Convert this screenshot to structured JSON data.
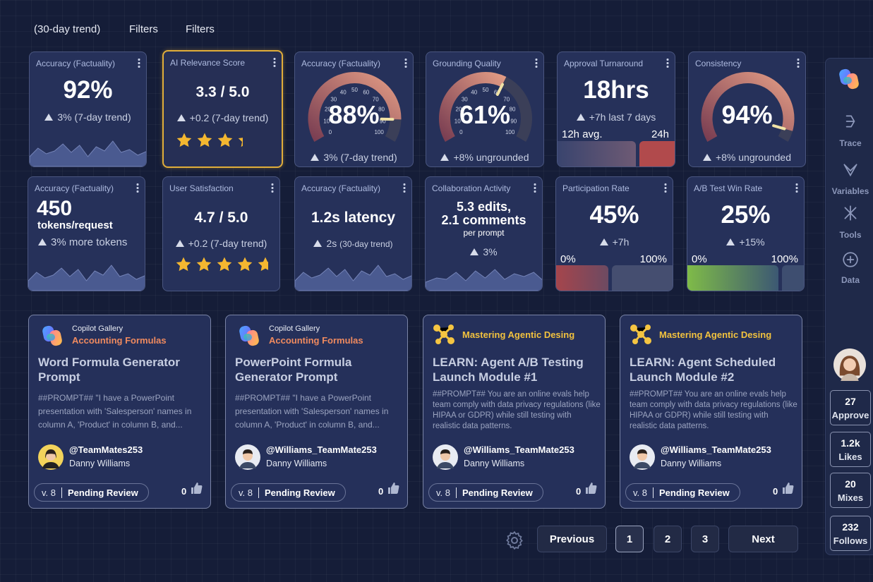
{
  "topbar": {
    "items": [
      "(30-day trend)",
      "Filters",
      "Filters"
    ]
  },
  "metrics": [
    {
      "title": "Accuracy (Factuality)",
      "value": "92%",
      "trend": "3% (7-day trend)"
    },
    {
      "title": "AI Relevance Score",
      "value": "3.3 / 5.0",
      "trend": "+0.2 (7-day trend)",
      "rating": 3.3
    },
    {
      "title": "Accuracy (Factuality)",
      "value": "88%",
      "gauge": 88,
      "trend": "3% (7-day trend)",
      "scale": [
        "0",
        "10",
        "20",
        "30",
        "40",
        "50",
        "60",
        "70",
        "80",
        "90",
        "100"
      ]
    },
    {
      "title": "Grounding Quality",
      "value": "61%",
      "gauge": 61,
      "trend": "+8% ungrounded",
      "scale": [
        "0",
        "10",
        "20",
        "30",
        "40",
        "50",
        "60",
        "70",
        "80",
        "90",
        "100"
      ]
    },
    {
      "title": "Approval Turnaround",
      "value": "18hrs",
      "trend": "+7h last 7 days",
      "bar_labels": [
        "12h avg.",
        "24h"
      ]
    },
    {
      "title": "Consistency",
      "value": "94%",
      "gauge": 94,
      "trend": "+8% ungrounded"
    },
    {
      "title": "Accuracy (Factuality)",
      "value": "450",
      "unit": "tokens/request",
      "trend": "3% more tokens"
    },
    {
      "title": "User Satisfaction",
      "value": "4.7 / 5.0",
      "trend": "+0.2 (7-day trend)",
      "rating": 4.7
    },
    {
      "title": "Accuracy (Factuality)",
      "value": "1.2s latency",
      "trend": "2s",
      "trend_note": "(30-day trend)"
    },
    {
      "title": "Collaboration Activity",
      "value_lines": [
        "5.3 edits,",
        "2.1 comments"
      ],
      "unit": "per prompt",
      "trend": "3%"
    },
    {
      "title": "Participation Rate",
      "value": "45%",
      "trend": "+7h",
      "bar_labels": [
        "0%",
        "100%"
      ]
    },
    {
      "title": "A/B Test Win Rate",
      "value": "25%",
      "trend": "+15%",
      "bar_labels": [
        "0%",
        "100%"
      ]
    }
  ],
  "gallery": [
    {
      "source": "Copilot Gallery",
      "category": "Accounting Formulas",
      "title": "Word Formula Generator Prompt",
      "prompt": "##PROMPT##  \"I have a PowerPoint presentation with 'Salesperson' names in column A, 'Product' in column B, and...",
      "handle": "@TeamMates253",
      "author": "Danny Williams",
      "version": "v. 8",
      "status": "Pending Review",
      "likes": "0"
    },
    {
      "source": "Copilot Gallery",
      "category": "Accounting Formulas",
      "title": "PowerPoint Formula Generator Prompt",
      "prompt": "##PROMPT##  \"I have a PowerPoint presentation with 'Salesperson' names in column A, 'Product' in column B, and...",
      "handle": "@Williams_TeamMate253",
      "author": "Danny Williams",
      "version": "v. 8",
      "status": "Pending Review",
      "likes": "0"
    },
    {
      "category": "Mastering Agentic Desing",
      "title": "LEARN: Agent A/B Testing Launch Module #1",
      "prompt": "##PROMPT##  You are an online evals help team comply with data privacy regulations (like HIPAA or GDPR) while still testing with realistic data patterns.",
      "handle": "@Williams_TeamMate253",
      "author": "Danny Williams",
      "version": "v. 8",
      "status": "Pending Review",
      "likes": "0"
    },
    {
      "category": "Mastering Agentic Desing",
      "title": "LEARN:  Agent Scheduled Launch  Module #2",
      "prompt": "##PROMPT##  You are an online evals help team comply with data privacy regulations (like HIPAA or GDPR) while still testing with realistic data patterns.",
      "handle": "@Williams_TeamMate253",
      "author": "Danny Williams",
      "version": "v. 8",
      "status": "Pending Review",
      "likes": "0"
    }
  ],
  "pagination": {
    "previous": "Previous",
    "pages": [
      "1",
      "2",
      "3"
    ],
    "next": "Next"
  },
  "sidebar": {
    "nav": [
      "Trace",
      "Variables",
      "Tools",
      "Data"
    ],
    "stats": [
      {
        "value": "27",
        "label": "Approve"
      },
      {
        "value": "1.2k",
        "label": "Likes"
      },
      {
        "value": "20",
        "label": "Mixes"
      },
      {
        "value": "232",
        "label": "Follows"
      }
    ]
  }
}
